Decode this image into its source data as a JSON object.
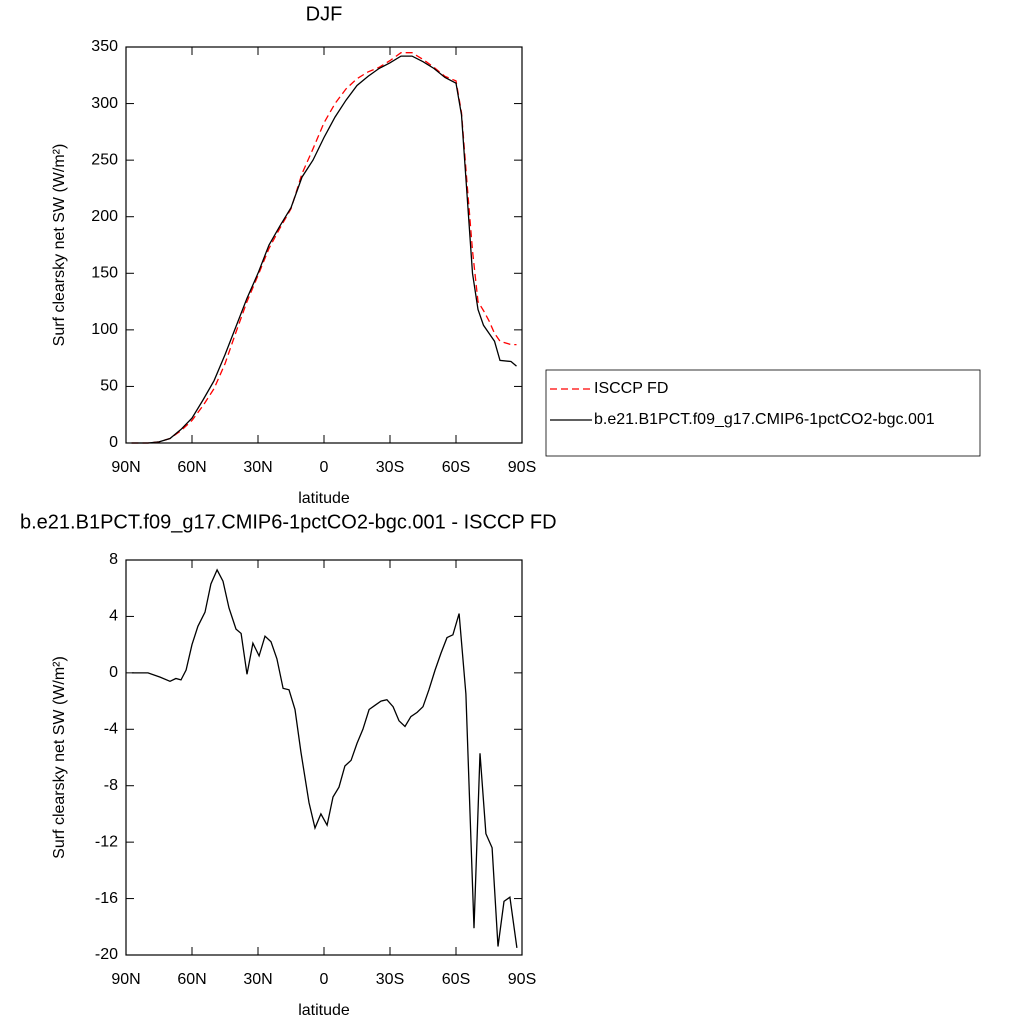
{
  "chart_data": [
    {
      "type": "line",
      "title": "DJF",
      "xlabel": "latitude",
      "ylabel": "Surf clearsky net SW (W/m²)",
      "x": [
        87.5,
        80,
        75,
        70,
        65,
        60,
        55,
        50,
        45,
        40,
        35,
        30,
        25,
        20,
        15,
        10,
        5,
        0,
        -5,
        -10,
        -15,
        -20,
        -25,
        -30,
        -35,
        -40,
        -45,
        -50,
        -55,
        -60,
        -62.5,
        -65,
        -67.5,
        -70,
        -72.5,
        -75,
        -77.5,
        -80,
        -85,
        -87.5
      ],
      "series": [
        {
          "name": "ISCCP FD",
          "color": "#ff0000",
          "line_style": "dashed",
          "values": [
            0,
            0,
            1,
            4,
            11,
            20,
            33,
            48,
            70,
            98,
            125,
            148,
            172,
            190,
            207,
            238,
            260,
            283,
            300,
            313,
            322,
            328,
            332,
            338,
            345,
            345,
            339,
            332,
            324,
            320,
            292,
            230,
            170,
            125,
            117,
            108,
            97,
            90,
            87,
            87
          ]
        },
        {
          "name": "b.e21.B1PCT.f09_g17.CMIP6-1pctCO2-bgc.001",
          "color": "#000000",
          "line_style": "solid",
          "values": [
            0,
            0,
            1,
            4,
            12,
            22,
            38,
            55,
            78,
            103,
            128,
            150,
            175,
            192,
            208,
            235,
            250,
            270,
            288,
            303,
            316,
            324,
            331,
            336,
            342,
            342,
            337,
            331,
            323,
            318,
            290,
            220,
            150,
            118,
            104,
            97,
            90,
            73,
            72,
            68
          ]
        }
      ],
      "xlim": [
        90,
        -90
      ],
      "xticks": [
        {
          "value": 90,
          "label": "90N"
        },
        {
          "value": 60,
          "label": "60N"
        },
        {
          "value": 30,
          "label": "30N"
        },
        0,
        {
          "value": -30,
          "label": "30S"
        },
        {
          "value": -60,
          "label": "60S"
        },
        {
          "value": -90,
          "label": "90S"
        }
      ],
      "ylim": [
        0,
        350
      ],
      "yticks": [
        0,
        50,
        100,
        150,
        200,
        250,
        300,
        350
      ],
      "legend": "right"
    },
    {
      "type": "line",
      "title": "b.e21.B1PCT.f09_g17.CMIP6-1pctCO2-bgc.001 - ISCCP FD",
      "xlabel": "latitude",
      "ylabel": "Surf clearsky net SW (W/m²)",
      "x": [
        87.3,
        80,
        74.5,
        70,
        67.3,
        65,
        62.7,
        60,
        57.3,
        54.1,
        51.4,
        48.6,
        45.9,
        43.2,
        40,
        37.7,
        35,
        32.3,
        29.5,
        26.8,
        24.1,
        21.4,
        18.6,
        15.9,
        13.2,
        10.5,
        6.8,
        4.1,
        1.4,
        -1.4,
        -4.1,
        -6.8,
        -9.5,
        -12.3,
        -15,
        -17.7,
        -20.5,
        -23.2,
        -25.9,
        -28.6,
        -31.4,
        -34.1,
        -36.8,
        -39.5,
        -42.3,
        -45,
        -47.7,
        -50.5,
        -53.2,
        -55.9,
        -58.6,
        -61.4,
        -64.5,
        -68.2,
        -70.9,
        -73.6,
        -76.4,
        -79.1,
        -81.8,
        -84.5,
        -87.7
      ],
      "values": [
        0,
        0,
        -0.3,
        -0.6,
        -0.4,
        -0.5,
        0.2,
        2,
        3.3,
        4.3,
        6.3,
        7.3,
        6.5,
        4.6,
        3.1,
        2.8,
        -0.1,
        2.1,
        1.2,
        2.6,
        2.2,
        1,
        -1.1,
        -1.2,
        -2.6,
        -5.6,
        -9.2,
        -11,
        -10,
        -10.8,
        -8.8,
        -8.1,
        -6.6,
        -6.2,
        -5,
        -4,
        -2.6,
        -2.3,
        -2,
        -1.9,
        -2.4,
        -3.4,
        -3.8,
        -3.1,
        -2.8,
        -2.4,
        -1.2,
        0.2,
        1.4,
        2.5,
        2.7,
        4.2,
        -1.5,
        -18.1,
        -5.7,
        -11.4,
        -12.4,
        -19.4,
        -16.2,
        -15.9,
        -19.5
      ],
      "color": "#000000",
      "xlim": [
        90,
        -90
      ],
      "xticks": [
        {
          "value": 90,
          "label": "90N"
        },
        {
          "value": 60,
          "label": "60N"
        },
        {
          "value": 30,
          "label": "30N"
        },
        0,
        {
          "value": -30,
          "label": "30S"
        },
        {
          "value": -60,
          "label": "60S"
        },
        {
          "value": -90,
          "label": "90S"
        }
      ],
      "ylim": [
        -20,
        8
      ],
      "yticks": [
        -20,
        -16,
        -12,
        -8,
        -4,
        0,
        4,
        8
      ]
    }
  ]
}
